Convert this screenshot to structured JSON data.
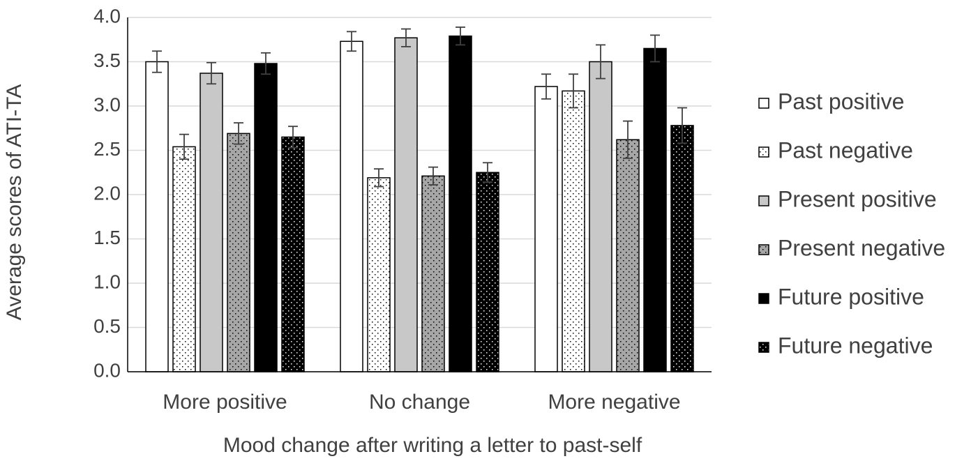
{
  "chart_data": {
    "type": "bar",
    "x_label": "Mood change after writing a letter to past-self",
    "y_label": "Average scores of ATI-TA",
    "categories": [
      "More positive",
      "No change",
      "More negative"
    ],
    "series": [
      {
        "name": "Past positive",
        "color": "#ffffff",
        "pattern": "solid",
        "values": [
          3.5,
          3.73,
          3.22
        ],
        "errors": [
          0.12,
          0.11,
          0.14
        ]
      },
      {
        "name": "Past negative",
        "color": "#ffffff",
        "pattern": "dots",
        "values": [
          2.54,
          2.19,
          3.17
        ],
        "errors": [
          0.14,
          0.1,
          0.19
        ]
      },
      {
        "name": "Present positive",
        "color": "#c8c8c8",
        "pattern": "solid",
        "values": [
          3.37,
          3.77,
          3.5
        ],
        "errors": [
          0.12,
          0.1,
          0.19
        ]
      },
      {
        "name": "Present negative",
        "color": "#a6a6a6",
        "pattern": "dots",
        "values": [
          2.69,
          2.21,
          2.62
        ],
        "errors": [
          0.12,
          0.1,
          0.21
        ]
      },
      {
        "name": "Future positive",
        "color": "#000000",
        "pattern": "solid",
        "values": [
          3.48,
          3.79,
          3.65
        ],
        "errors": [
          0.12,
          0.1,
          0.15
        ]
      },
      {
        "name": "Future negative",
        "color": "#000000",
        "pattern": "dots",
        "values": [
          2.65,
          2.25,
          2.78
        ],
        "errors": [
          0.12,
          0.11,
          0.2
        ]
      }
    ],
    "ylim": [
      0,
      4
    ],
    "yticks": [
      {
        "value": 0,
        "label": "0.0"
      },
      0.5,
      {
        "value": 1,
        "label": "1.0"
      },
      1.5,
      {
        "value": 2,
        "label": "2.0"
      },
      2.5,
      {
        "value": 3,
        "label": "3.0"
      },
      3.5,
      {
        "value": 4,
        "label": "4.0"
      }
    ],
    "grid": true,
    "legend": "right"
  }
}
